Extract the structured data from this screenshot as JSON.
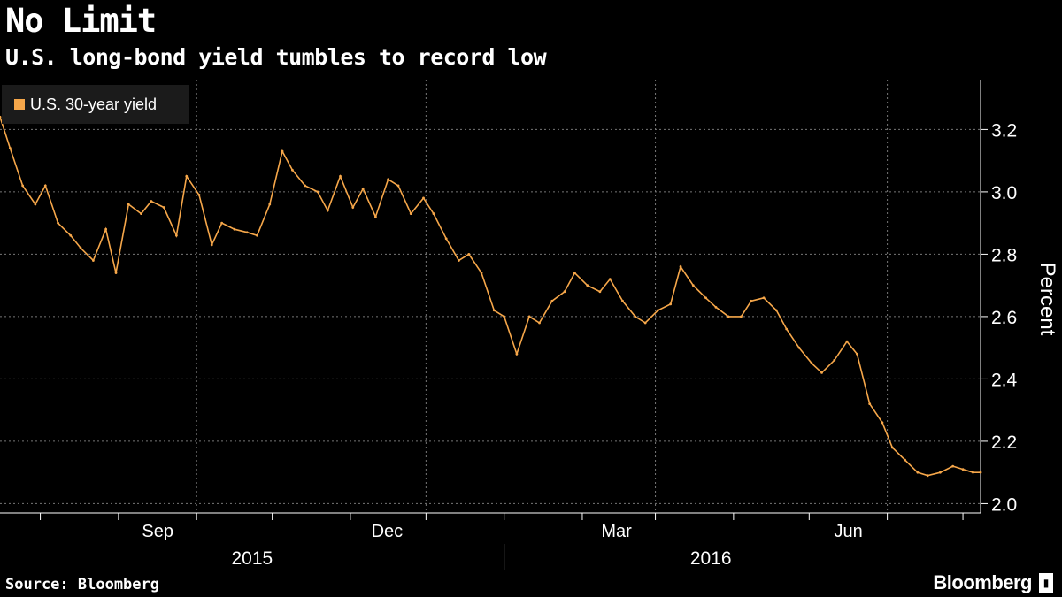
{
  "header": {
    "title": "No Limit",
    "subtitle": "U.S. long-bond yield tumbles to record low"
  },
  "legend": {
    "label": "U.S. 30-year yield",
    "color": "#f6a74a"
  },
  "footer": {
    "source": "Source: Bloomberg",
    "brand": "Bloomberg"
  },
  "chart_data": {
    "type": "line",
    "title": "No Limit",
    "subtitle": "U.S. long-bond yield tumbles to record low",
    "xlabel": "",
    "ylabel": "Percent",
    "ylim": [
      1.97,
      3.36
    ],
    "yticks": [
      2.0,
      2.2,
      2.4,
      2.6,
      2.8,
      3.0,
      3.2
    ],
    "ytick_labels": [
      "2.0",
      "2.2",
      "2.4",
      "2.6",
      "2.8",
      "3.0",
      "3.2"
    ],
    "xlim": [
      "2015-06-15",
      "2016-07-08"
    ],
    "month_labels": [
      {
        "date": "2015-09-01",
        "label": "Sep"
      },
      {
        "date": "2015-12-01",
        "label": "Dec"
      },
      {
        "date": "2016-03-01",
        "label": "Mar"
      },
      {
        "date": "2016-06-01",
        "label": "Jun"
      }
    ],
    "year_labels": [
      {
        "date": "2015-09-23",
        "label": "2015"
      },
      {
        "date": "2016-03-23",
        "label": "2016"
      }
    ],
    "grid": true,
    "legend_position": "top-left",
    "series": [
      {
        "name": "U.S. 30-year yield",
        "color": "#f6a74a",
        "x": [
          "2015-06-15",
          "2015-06-19",
          "2015-06-24",
          "2015-06-29",
          "2015-07-03",
          "2015-07-08",
          "2015-07-13",
          "2015-07-17",
          "2015-07-22",
          "2015-07-27",
          "2015-07-31",
          "2015-08-05",
          "2015-08-10",
          "2015-08-14",
          "2015-08-19",
          "2015-08-24",
          "2015-08-28",
          "2015-09-02",
          "2015-09-07",
          "2015-09-11",
          "2015-09-16",
          "2015-09-21",
          "2015-09-25",
          "2015-09-30",
          "2015-10-05",
          "2015-10-09",
          "2015-10-14",
          "2015-10-19",
          "2015-10-23",
          "2015-10-28",
          "2015-11-02",
          "2015-11-06",
          "2015-11-11",
          "2015-11-16",
          "2015-11-20",
          "2015-11-25",
          "2015-11-30",
          "2015-12-04",
          "2015-12-09",
          "2015-12-14",
          "2015-12-18",
          "2015-12-23",
          "2015-12-28",
          "2016-01-01",
          "2016-01-06",
          "2016-01-11",
          "2016-01-15",
          "2016-01-20",
          "2016-01-25",
          "2016-01-29",
          "2016-02-03",
          "2016-02-08",
          "2016-02-12",
          "2016-02-17",
          "2016-02-22",
          "2016-02-26",
          "2016-03-02",
          "2016-03-07",
          "2016-03-11",
          "2016-03-16",
          "2016-03-21",
          "2016-03-25",
          "2016-03-30",
          "2016-04-04",
          "2016-04-08",
          "2016-04-13",
          "2016-04-18",
          "2016-04-22",
          "2016-04-27",
          "2016-05-02",
          "2016-05-06",
          "2016-05-11",
          "2016-05-16",
          "2016-05-20",
          "2016-05-25",
          "2016-05-30",
          "2016-06-03",
          "2016-06-08",
          "2016-06-13",
          "2016-06-17",
          "2016-06-22",
          "2016-06-27",
          "2016-07-01",
          "2016-07-05",
          "2016-07-08"
        ],
        "y": [
          3.24,
          3.14,
          3.02,
          2.96,
          3.02,
          2.9,
          2.86,
          2.82,
          2.78,
          2.88,
          2.74,
          2.96,
          2.93,
          2.97,
          2.95,
          2.86,
          3.05,
          2.99,
          2.83,
          2.9,
          2.88,
          2.87,
          2.86,
          2.96,
          3.13,
          3.07,
          3.02,
          3.0,
          2.94,
          3.05,
          2.95,
          3.01,
          2.92,
          3.04,
          3.02,
          2.93,
          2.98,
          2.93,
          2.85,
          2.78,
          2.8,
          2.74,
          2.62,
          2.6,
          2.48,
          2.6,
          2.58,
          2.65,
          2.68,
          2.74,
          2.7,
          2.68,
          2.72,
          2.65,
          2.6,
          2.58,
          2.62,
          2.64,
          2.76,
          2.7,
          2.66,
          2.63,
          2.6,
          2.6,
          2.65,
          2.66,
          2.62,
          2.56,
          2.5,
          2.45,
          2.42,
          2.46,
          2.52,
          2.48,
          2.32,
          2.26,
          2.18,
          2.14,
          2.1,
          2.09,
          2.1,
          2.12,
          2.11,
          2.1,
          2.1
        ]
      }
    ]
  }
}
